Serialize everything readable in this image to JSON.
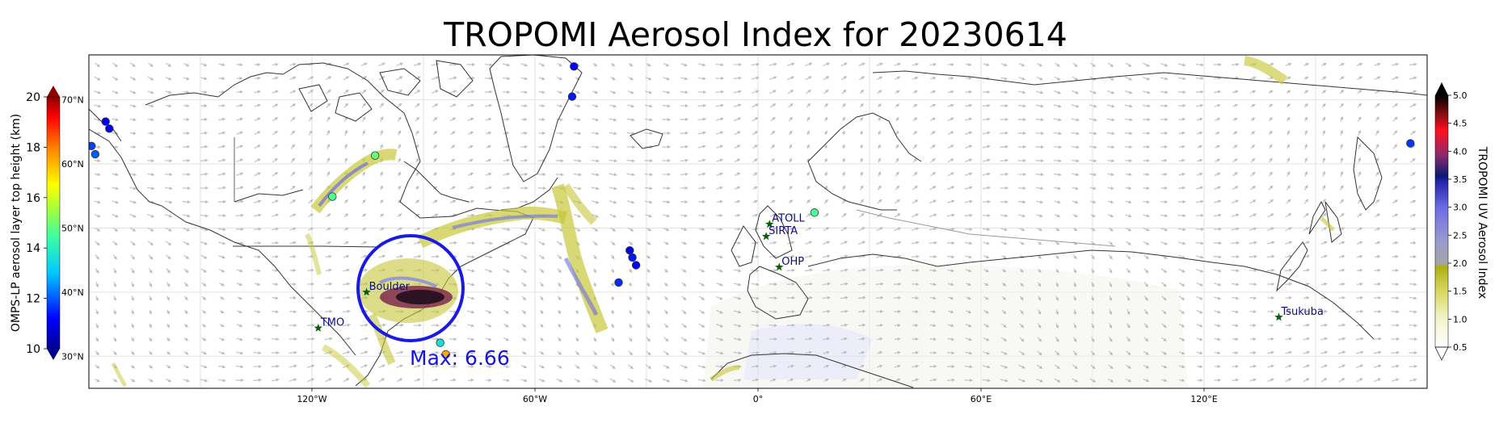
{
  "title": "TROPOMI Aerosol Index for 20230614",
  "max_label": "Max: 6.66",
  "colors": {
    "wind_arrow": "#bdbdbd",
    "coast": "#333333",
    "grid": "#dddddd",
    "circle": "#1a1ae6",
    "site_star": "#0b5e0b",
    "site_text": "#0b0b8a"
  },
  "left_colorbar": {
    "label": "OMPS-LP aerosol layer top height (km)",
    "range": [
      10,
      20
    ],
    "ticks": [
      "10",
      "12",
      "14",
      "16",
      "18",
      "20"
    ]
  },
  "right_colorbar": {
    "label": "TROPOMI UV Aerosol Index",
    "range": [
      0.5,
      5.0
    ],
    "ticks": [
      "0.5",
      "1.0",
      "1.5",
      "2.0",
      "2.5",
      "3.0",
      "3.5",
      "4.0",
      "4.5",
      "5.0"
    ]
  },
  "lon_ticks": [
    {
      "lon": -120,
      "label": "120°W"
    },
    {
      "lon": -60,
      "label": "60°W"
    },
    {
      "lon": 0,
      "label": "0°"
    },
    {
      "lon": 60,
      "label": "60°E"
    },
    {
      "lon": 120,
      "label": "120°E"
    }
  ],
  "lat_labels": [
    "70°N",
    "60°N",
    "50°N",
    "40°N",
    "30°N"
  ],
  "map_extent": {
    "lon": [
      -180,
      180
    ],
    "lat": [
      25,
      77
    ]
  },
  "sites": [
    {
      "name": "TMO",
      "lon": -118.3,
      "lat": 34.4
    },
    {
      "name": "Boulder",
      "lon": -105.3,
      "lat": 40.0
    },
    {
      "name": "ATOLL",
      "lon": 3.1,
      "lat": 50.6
    },
    {
      "name": "SIRTA",
      "lon": 2.2,
      "lat": 48.7
    },
    {
      "name": "OHP",
      "lon": 5.7,
      "lat": 43.9
    },
    {
      "name": "Tsukuba",
      "lon": 140.1,
      "lat": 36.1
    }
  ],
  "max_point": {
    "lon": -94.5,
    "lat": 44.5
  },
  "omps_points": [
    {
      "lon": -175.5,
      "lat": 66.6,
      "height": 11.2
    },
    {
      "lon": -174.5,
      "lat": 65.5,
      "height": 11.0
    },
    {
      "lon": -179.3,
      "lat": 62.8,
      "height": 11.8
    },
    {
      "lon": -178.3,
      "lat": 61.5,
      "height": 12.0
    },
    {
      "lon": -103.0,
      "lat": 61.3,
      "height": 14.9
    },
    {
      "lon": -114.5,
      "lat": 54.9,
      "height": 14.6
    },
    {
      "lon": -49.5,
      "lat": 75.2,
      "height": 11.2
    },
    {
      "lon": -50.0,
      "lat": 70.5,
      "height": 11.4
    },
    {
      "lon": -34.5,
      "lat": 46.5,
      "height": 11.0
    },
    {
      "lon": -33.8,
      "lat": 45.4,
      "height": 11.4
    },
    {
      "lon": -32.8,
      "lat": 44.2,
      "height": 11.2
    },
    {
      "lon": -37.5,
      "lat": 41.5,
      "height": 11.6
    },
    {
      "lon": 15.2,
      "lat": 52.4,
      "height": 14.6
    },
    {
      "lon": 175.5,
      "lat": 63.2,
      "height": 11.7
    },
    {
      "lon": -85.5,
      "lat": 32.1,
      "height": 13.6
    },
    {
      "lon": -84.0,
      "lat": 30.3,
      "height": 17.5
    }
  ]
}
